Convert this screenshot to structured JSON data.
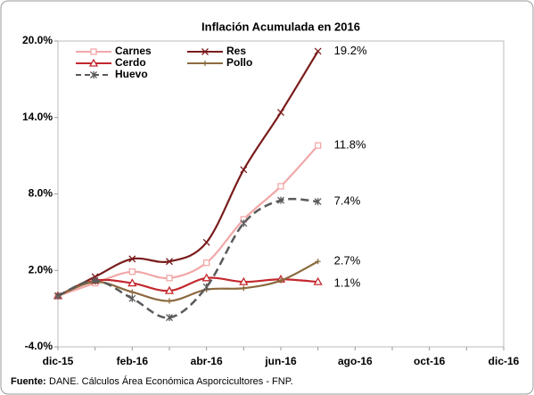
{
  "chart_data": {
    "type": "line",
    "title": "Inflación Acumulada en 2016",
    "categories": [
      "dic-15",
      null,
      "feb-16",
      null,
      "abr-16",
      null,
      "jun-16",
      null,
      "ago-16",
      null,
      "oct-16",
      null,
      "dic-16"
    ],
    "ylim": [
      -4,
      20
    ],
    "yticks": [
      {
        "value": -4,
        "label": "-4.0%"
      },
      {
        "value": 2,
        "label": "2.0%"
      },
      {
        "value": 8,
        "label": "8.0%"
      },
      {
        "value": 14,
        "label": "14.0%"
      },
      {
        "value": 20,
        "label": "20.0%"
      }
    ],
    "legend": "upper left",
    "series": [
      {
        "name": "Carnes",
        "color": "#f2a7a7",
        "marker": "square",
        "values": [
          0,
          1.0,
          1.9,
          1.4,
          2.6,
          6.0,
          8.6,
          11.8,
          null,
          null,
          null,
          null,
          null
        ],
        "value_labels": [
          null,
          null,
          null,
          null,
          null,
          null,
          null,
          "11.8%",
          null,
          null,
          null,
          null,
          null
        ]
      },
      {
        "name": "Res",
        "color": "#7a1c1c",
        "marker": "x",
        "values": [
          0,
          1.5,
          2.9,
          2.7,
          4.2,
          9.9,
          14.4,
          19.2,
          null,
          null,
          null,
          null,
          null
        ],
        "value_labels": [
          null,
          null,
          null,
          null,
          null,
          null,
          null,
          "19.2%",
          null,
          null,
          null,
          null,
          null
        ]
      },
      {
        "name": "Cerdo",
        "color": "#c3282d",
        "marker": "triangle",
        "values": [
          0,
          1.2,
          1.0,
          0.4,
          1.4,
          1.1,
          1.3,
          1.1,
          null,
          null,
          null,
          null,
          null
        ],
        "value_labels": [
          null,
          null,
          null,
          null,
          null,
          null,
          null,
          "1.1%",
          null,
          null,
          null,
          null,
          null
        ]
      },
      {
        "name": "Pollo",
        "color": "#8b6a3e",
        "marker": "plus",
        "values": [
          0,
          1.1,
          0.3,
          -0.4,
          0.5,
          0.6,
          1.2,
          2.7,
          null,
          null,
          null,
          null,
          null
        ],
        "value_labels": [
          null,
          null,
          null,
          null,
          null,
          null,
          null,
          "2.7%",
          null,
          null,
          null,
          null,
          null
        ]
      },
      {
        "name": "Huevo",
        "color": "#5a5a5a",
        "marker": "star",
        "dashed": true,
        "values": [
          0,
          1.2,
          -0.2,
          -1.7,
          0.7,
          5.7,
          7.5,
          7.4,
          null,
          null,
          null,
          null,
          null
        ],
        "value_labels": [
          null,
          null,
          null,
          null,
          null,
          null,
          null,
          "7.4%",
          null,
          null,
          null,
          null,
          null
        ]
      }
    ],
    "source": {
      "label": "Fuente:",
      "text": "DANE. Cálculos Área Económica  Asporcicultores - FNP."
    }
  }
}
